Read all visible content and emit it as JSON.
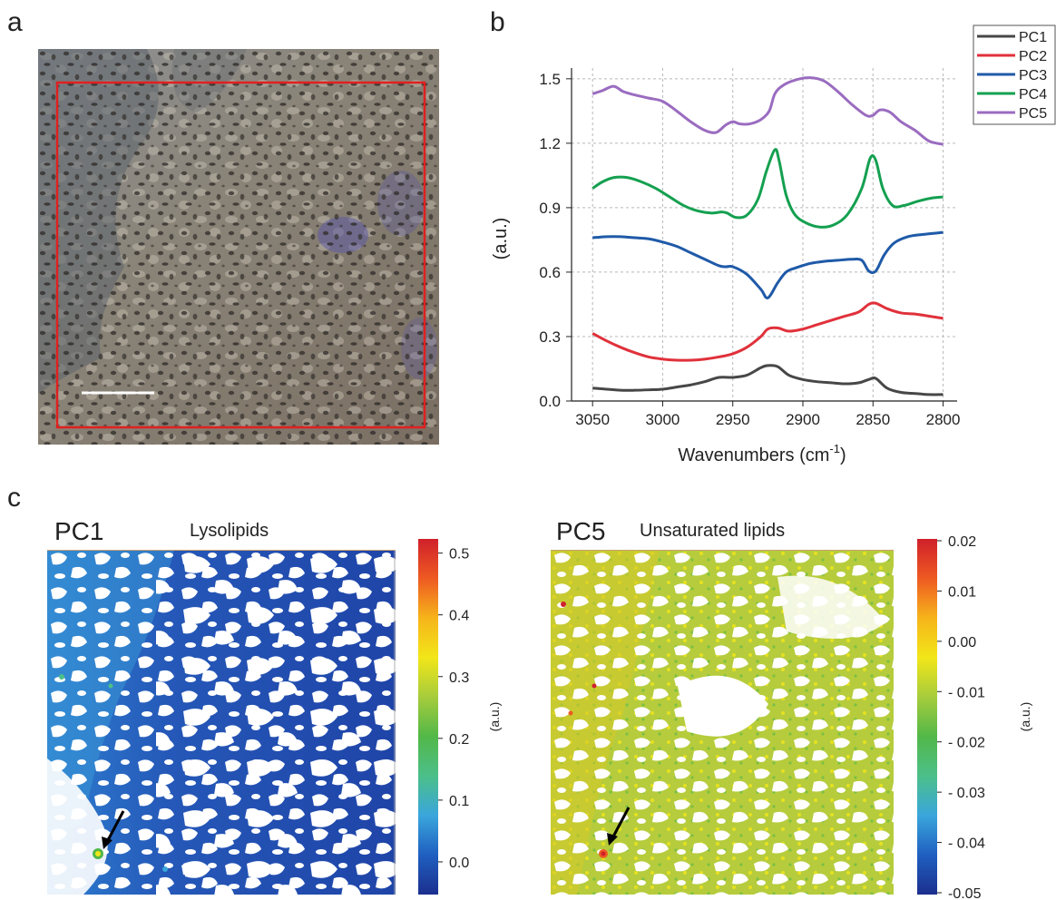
{
  "panels": {
    "a": "a",
    "b": "b",
    "c": "c"
  },
  "colors": {
    "pc1": "#474747",
    "pc2": "#e0313b",
    "pc3": "#1f5aa8",
    "pc4": "#14a050",
    "pc5": "#9a6cc0",
    "frame": "#e02020",
    "scalebar": "#ffffff"
  },
  "chart_data": {
    "type": "line",
    "xlabel": "Wavenumbers (cm",
    "xlabel_sup": "-1",
    "xlabel_close": ")",
    "ylabel": "(a.u.)",
    "xlim": [
      3065,
      2790
    ],
    "x_reversed": true,
    "ylim": [
      0,
      1.55
    ],
    "x_ticks": [
      3050,
      3000,
      2950,
      2900,
      2850,
      2800
    ],
    "x_tick_labels": [
      "3050",
      "3000",
      "2950",
      "2900",
      "2850",
      "2800"
    ],
    "y_ticks": [
      0,
      0.3,
      0.6,
      0.9,
      1.2,
      1.5
    ],
    "y_tick_labels": [
      "0.0",
      "0.3",
      "0.6",
      "0.9",
      "1.2",
      "1.5"
    ],
    "grid": true,
    "legend_position": "top-right",
    "series": [
      {
        "name": "PC1",
        "x": [
          3050,
          3040,
          3030,
          3020,
          3010,
          3000,
          2990,
          2980,
          2970,
          2960,
          2950,
          2940,
          2930,
          2925,
          2918,
          2910,
          2900,
          2890,
          2880,
          2870,
          2860,
          2853,
          2848,
          2840,
          2830,
          2820,
          2810,
          2800
        ],
        "y": [
          0.06,
          0.055,
          0.05,
          0.05,
          0.052,
          0.055,
          0.065,
          0.075,
          0.09,
          0.11,
          0.11,
          0.12,
          0.155,
          0.165,
          0.16,
          0.12,
          0.1,
          0.09,
          0.085,
          0.08,
          0.085,
          0.1,
          0.105,
          0.06,
          0.04,
          0.035,
          0.03,
          0.03
        ]
      },
      {
        "name": "PC2",
        "x": [
          3050,
          3040,
          3030,
          3020,
          3010,
          3000,
          2990,
          2980,
          2970,
          2960,
          2950,
          2940,
          2930,
          2925,
          2918,
          2910,
          2900,
          2890,
          2880,
          2870,
          2860,
          2853,
          2848,
          2840,
          2830,
          2820,
          2810,
          2800
        ],
        "y": [
          0.315,
          0.28,
          0.25,
          0.225,
          0.205,
          0.195,
          0.19,
          0.19,
          0.195,
          0.205,
          0.22,
          0.25,
          0.3,
          0.335,
          0.34,
          0.325,
          0.335,
          0.355,
          0.375,
          0.395,
          0.415,
          0.45,
          0.455,
          0.43,
          0.41,
          0.405,
          0.395,
          0.385
        ]
      },
      {
        "name": "PC3",
        "x": [
          3050,
          3040,
          3030,
          3020,
          3010,
          3000,
          2990,
          2980,
          2970,
          2960,
          2955,
          2950,
          2940,
          2930,
          2925,
          2918,
          2912,
          2905,
          2895,
          2885,
          2875,
          2865,
          2858,
          2853,
          2848,
          2842,
          2835,
          2825,
          2815,
          2800
        ],
        "y": [
          0.76,
          0.765,
          0.765,
          0.76,
          0.755,
          0.74,
          0.72,
          0.69,
          0.66,
          0.63,
          0.625,
          0.625,
          0.59,
          0.52,
          0.48,
          0.55,
          0.6,
          0.62,
          0.64,
          0.65,
          0.655,
          0.66,
          0.655,
          0.605,
          0.605,
          0.68,
          0.735,
          0.765,
          0.775,
          0.785
        ]
      },
      {
        "name": "PC4",
        "x": [
          3050,
          3043,
          3035,
          3025,
          3015,
          3005,
          2995,
          2985,
          2975,
          2965,
          2958,
          2954,
          2948,
          2940,
          2932,
          2926,
          2920,
          2917,
          2912,
          2906,
          2898,
          2888,
          2878,
          2868,
          2858,
          2852,
          2848,
          2843,
          2836,
          2828,
          2818,
          2808,
          2800
        ],
        "y": [
          0.99,
          1.02,
          1.04,
          1.04,
          1.02,
          0.99,
          0.95,
          0.91,
          0.885,
          0.875,
          0.88,
          0.875,
          0.855,
          0.865,
          0.94,
          1.07,
          1.17,
          1.12,
          0.96,
          0.87,
          0.83,
          0.81,
          0.82,
          0.87,
          0.99,
          1.13,
          1.12,
          0.99,
          0.91,
          0.91,
          0.93,
          0.945,
          0.95
        ]
      },
      {
        "name": "PC5",
        "x": [
          3050,
          3043,
          3035,
          3028,
          3020,
          3010,
          3000,
          2990,
          2980,
          2970,
          2962,
          2955,
          2950,
          2945,
          2938,
          2930,
          2924,
          2920,
          2914,
          2905,
          2895,
          2885,
          2875,
          2865,
          2855,
          2850,
          2845,
          2838,
          2830,
          2820,
          2810,
          2800
        ],
        "y": [
          1.43,
          1.445,
          1.465,
          1.44,
          1.425,
          1.41,
          1.395,
          1.35,
          1.3,
          1.26,
          1.25,
          1.285,
          1.3,
          1.29,
          1.29,
          1.31,
          1.35,
          1.43,
          1.47,
          1.495,
          1.505,
          1.49,
          1.44,
          1.38,
          1.33,
          1.33,
          1.355,
          1.345,
          1.3,
          1.26,
          1.21,
          1.195
        ]
      }
    ]
  },
  "maps": {
    "left": {
      "label": "PC1",
      "title": "Lysolipids",
      "colorbar_unit": "(a.u.)",
      "colorbar_ticks": [
        "0.5",
        "0.4",
        "0.3",
        "0.2",
        "0.1",
        "0.0"
      ],
      "colorbar_values": [
        0.5,
        0.4,
        0.3,
        0.2,
        0.1,
        0.0
      ],
      "colorbar_range": [
        -0.05,
        0.52
      ]
    },
    "right": {
      "label": "PC5",
      "title": "Unsaturated lipids",
      "colorbar_unit": "(a.u.)",
      "colorbar_ticks": [
        "0.02",
        "0.01",
        "0.00",
        "- 0.01",
        "- 0.02",
        "- 0.03",
        "- 0.04",
        "-0.05"
      ],
      "colorbar_values": [
        0.02,
        0.01,
        0.0,
        -0.01,
        -0.02,
        -0.03,
        -0.04,
        -0.05
      ],
      "colorbar_range": [
        -0.05,
        0.02
      ]
    },
    "colorbar_colors": [
      "#1c2f8e",
      "#1f5fc0",
      "#3aa6dc",
      "#4cbf8a",
      "#52b848",
      "#a6cc3c",
      "#f2e619",
      "#f6b41a",
      "#ee5a22",
      "#d0202b"
    ]
  }
}
